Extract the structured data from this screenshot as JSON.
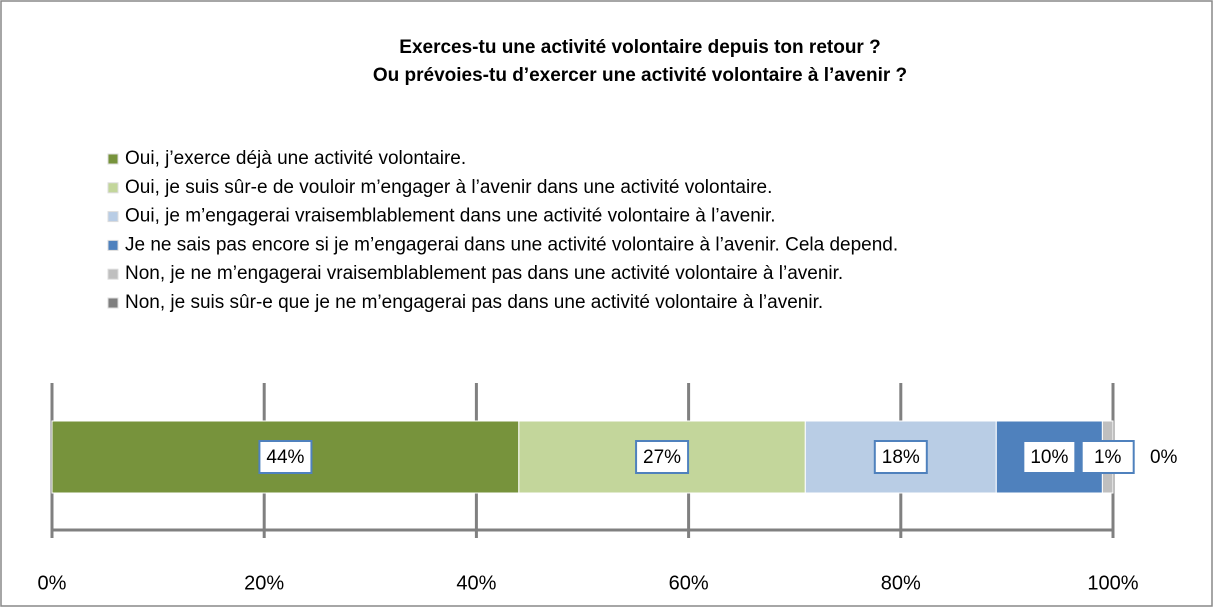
{
  "chart_data": {
    "type": "stacked-bar-horizontal",
    "title": [
      "Exerces-tu une activité volontaire depuis ton retour ?",
      "Ou prévoies-tu d’exercer une activité volontaire à l’avenir ?"
    ],
    "series": [
      {
        "name": "Oui, j’exerce déjà une activité volontaire.",
        "color": "#77933c",
        "values": [
          44
        ],
        "value_labels": [
          "44%"
        ]
      },
      {
        "name": "Oui, je suis sûr-e de vouloir m’engager à l’avenir dans une activité volontaire.",
        "color": "#c3d69b",
        "values": [
          27
        ],
        "value_labels": [
          "27%"
        ]
      },
      {
        "name": "Oui, je m’engagerai vraisemblablement dans une activité volontaire à l’avenir.",
        "color": "#b9cde5",
        "values": [
          18
        ],
        "value_labels": [
          "18%"
        ]
      },
      {
        "name": "Je ne sais pas encore si je m’engagerai dans une activité volontaire à l’avenir. Cela depend.",
        "color": "#4f81bd",
        "values": [
          10
        ],
        "value_labels": [
          "10%"
        ]
      },
      {
        "name": "Non, je ne m’engagerai vraisemblablement pas dans une activité volontaire à l’avenir.",
        "color": "#bfbfbf",
        "values": [
          1
        ],
        "value_labels": [
          "1%"
        ]
      },
      {
        "name": "Non, je suis sûr-e que je ne m’engagerai pas dans une activité volontaire à l’avenir.",
        "color": "#7f7f7f",
        "values": [
          0
        ],
        "value_labels": [
          "0%"
        ]
      }
    ],
    "xlim": [
      0,
      100
    ],
    "xticks": [
      {
        "value": 0,
        "label": "0%"
      },
      {
        "value": 20,
        "label": "20%"
      },
      {
        "value": 40,
        "label": "40%"
      },
      {
        "value": 60,
        "label": "60%"
      },
      {
        "value": 80,
        "label": "80%"
      },
      {
        "value": 100,
        "label": "100%"
      }
    ],
    "legend": "top"
  }
}
